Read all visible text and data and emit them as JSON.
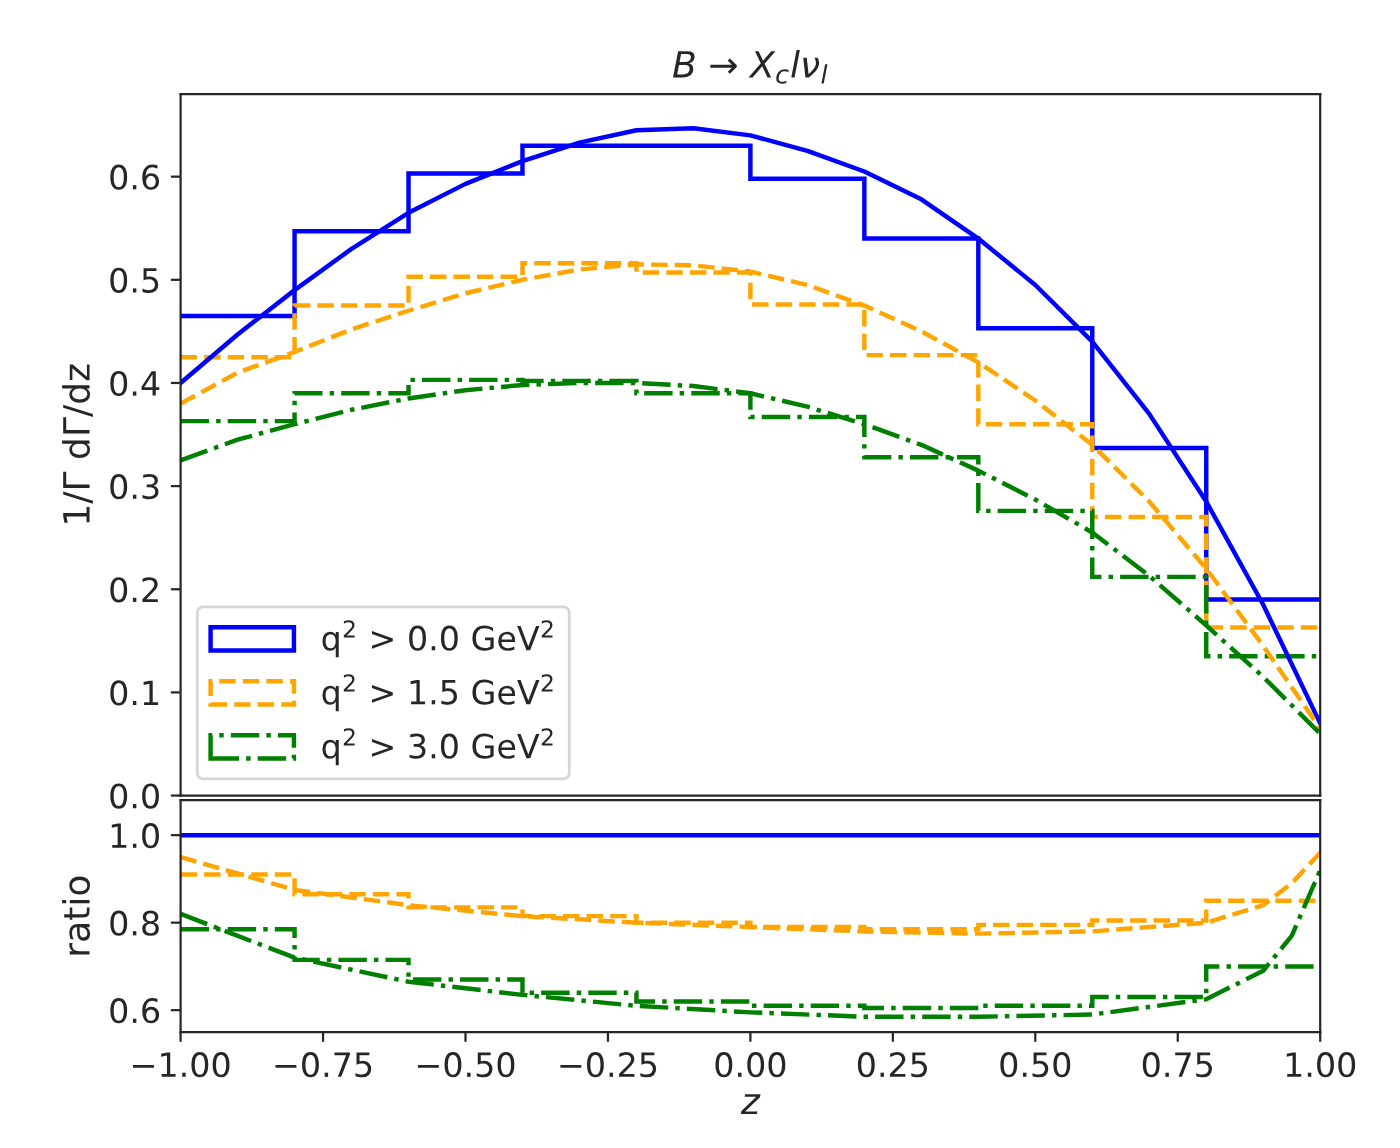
{
  "chart_data": [
    {
      "type": "histogram",
      "title": "B → X$_{c}$lν$_{l}$",
      "ylabel": "1/Γ dΓ/dz",
      "bins": [
        -1.0,
        -0.8,
        -0.6,
        -0.4,
        -0.2,
        0.0,
        0.2,
        0.4,
        0.6,
        0.8,
        1.0
      ],
      "xlim": [
        -1.0,
        1.0
      ],
      "ylim": [
        0.0,
        0.68
      ],
      "yticks": [
        {
          "value": 0.0,
          "label": "0.0"
        },
        {
          "value": 0.1,
          "label": "0.1"
        },
        {
          "value": 0.2,
          "label": "0.2"
        },
        {
          "value": 0.3,
          "label": "0.3"
        },
        {
          "value": 0.4,
          "label": "0.4"
        },
        {
          "value": 0.5,
          "label": "0.5"
        },
        {
          "value": 0.6,
          "label": "0.6"
        }
      ],
      "tick_labels": "y",
      "legend": "lower left",
      "series": [
        {
          "type": "histogram",
          "name": "q$^{2}$ > 0.0 GeV$^{2}$",
          "color": "#0000ff",
          "line_style": "solid",
          "values": [
            0.465,
            0.547,
            0.603,
            0.63,
            0.63,
            0.598,
            0.54,
            0.453,
            0.337,
            0.19
          ]
        },
        {
          "type": "histogram",
          "name": "q$^{2}$ > 1.5 GeV$^{2}$",
          "color": "#ffa500",
          "line_style": "dashed",
          "values": [
            0.425,
            0.475,
            0.503,
            0.516,
            0.507,
            0.476,
            0.427,
            0.36,
            0.27,
            0.163
          ]
        },
        {
          "type": "histogram",
          "name": "q$^{2}$ > 3.0 GeV$^{2}$",
          "color": "#008000",
          "line_style": "dashdot",
          "values": [
            0.363,
            0.39,
            0.403,
            0.402,
            0.39,
            0.367,
            0.328,
            0.276,
            0.212,
            0.135
          ]
        },
        {
          "type": "line",
          "color": "#0000ff",
          "line_style": "solid",
          "x": [
            -1.0,
            -0.9,
            -0.8,
            -0.7,
            -0.6,
            -0.5,
            -0.4,
            -0.3,
            -0.2,
            -0.1,
            0.0,
            0.1,
            0.2,
            0.3,
            0.4,
            0.5,
            0.6,
            0.7,
            0.8,
            0.9,
            1.0
          ],
          "values": [
            0.4,
            0.447,
            0.49,
            0.53,
            0.565,
            0.593,
            0.615,
            0.633,
            0.645,
            0.647,
            0.64,
            0.625,
            0.605,
            0.578,
            0.54,
            0.495,
            0.44,
            0.37,
            0.285,
            0.185,
            0.07
          ]
        },
        {
          "type": "line",
          "color": "#ffa500",
          "line_style": "dashed",
          "x": [
            -1.0,
            -0.9,
            -0.8,
            -0.7,
            -0.6,
            -0.5,
            -0.4,
            -0.3,
            -0.2,
            -0.1,
            0.0,
            0.1,
            0.2,
            0.3,
            0.4,
            0.5,
            0.6,
            0.7,
            0.8,
            0.9,
            1.0
          ],
          "values": [
            0.38,
            0.41,
            0.43,
            0.452,
            0.47,
            0.487,
            0.5,
            0.51,
            0.515,
            0.514,
            0.508,
            0.495,
            0.475,
            0.45,
            0.42,
            0.383,
            0.34,
            0.285,
            0.22,
            0.145,
            0.065
          ]
        },
        {
          "type": "line",
          "color": "#007f00",
          "line_style": "dashdot",
          "x": [
            -1.0,
            -0.9,
            -0.8,
            -0.7,
            -0.6,
            -0.5,
            -0.4,
            -0.3,
            -0.2,
            -0.1,
            0.0,
            0.1,
            0.2,
            0.3,
            0.4,
            0.5,
            0.6,
            0.7,
            0.8,
            0.9,
            1.0
          ],
          "values": [
            0.325,
            0.345,
            0.36,
            0.374,
            0.385,
            0.393,
            0.398,
            0.4,
            0.4,
            0.397,
            0.39,
            0.377,
            0.36,
            0.34,
            0.315,
            0.287,
            0.255,
            0.213,
            0.165,
            0.115,
            0.06
          ]
        }
      ]
    },
    {
      "type": "histogram",
      "xlabel": "z",
      "ylabel": "ratio",
      "bins": [
        -1.0,
        -0.8,
        -0.6,
        -0.4,
        -0.2,
        0.0,
        0.2,
        0.4,
        0.6,
        0.8,
        1.0
      ],
      "xlim": [
        -1.0,
        1.0
      ],
      "ylim": [
        0.55,
        1.08
      ],
      "xticks": [
        {
          "value": -1.0,
          "label": "−1.00"
        },
        {
          "value": -0.75,
          "label": "−0.75"
        },
        {
          "value": -0.5,
          "label": "−0.50"
        },
        {
          "value": -0.25,
          "label": "−0.25"
        },
        {
          "value": 0.0,
          "label": "0.00"
        },
        {
          "value": 0.25,
          "label": "0.25"
        },
        {
          "value": 0.5,
          "label": "0.50"
        },
        {
          "value": 0.75,
          "label": "0.75"
        },
        {
          "value": 1.0,
          "label": "1.00"
        }
      ],
      "yticks": [
        {
          "value": 0.6,
          "label": "0.6"
        },
        {
          "value": 0.8,
          "label": "0.8"
        },
        {
          "value": 1.0,
          "label": "1.0"
        }
      ],
      "series": [
        {
          "type": "line",
          "color": "#0000ff",
          "line_style": "solid",
          "x": [
            -1.0,
            1.0
          ],
          "values": [
            1.0,
            1.0
          ]
        },
        {
          "type": "histogram",
          "color": "#ffa500",
          "line_style": "dashed",
          "values": [
            0.91,
            0.865,
            0.835,
            0.815,
            0.8,
            0.79,
            0.785,
            0.795,
            0.805,
            0.85
          ]
        },
        {
          "type": "histogram",
          "color": "#008000",
          "line_style": "dashdot",
          "values": [
            0.785,
            0.715,
            0.67,
            0.64,
            0.62,
            0.61,
            0.605,
            0.61,
            0.63,
            0.7
          ]
        },
        {
          "type": "line",
          "color": "#fea400",
          "line_style": "dashed",
          "x": [
            -1.0,
            -0.8,
            -0.6,
            -0.4,
            -0.2,
            0.0,
            0.2,
            0.4,
            0.6,
            0.8,
            0.9,
            0.95,
            1.0
          ],
          "values": [
            0.95,
            0.875,
            0.84,
            0.815,
            0.8,
            0.79,
            0.78,
            0.775,
            0.78,
            0.8,
            0.84,
            0.89,
            0.96
          ]
        },
        {
          "type": "line",
          "color": "#007f00",
          "line_style": "dashdot",
          "x": [
            -1.0,
            -0.8,
            -0.6,
            -0.4,
            -0.2,
            0.0,
            0.2,
            0.4,
            0.6,
            0.8,
            0.9,
            0.95,
            1.0
          ],
          "values": [
            0.82,
            0.72,
            0.665,
            0.635,
            0.61,
            0.595,
            0.585,
            0.585,
            0.59,
            0.625,
            0.69,
            0.77,
            0.92
          ]
        }
      ]
    }
  ]
}
